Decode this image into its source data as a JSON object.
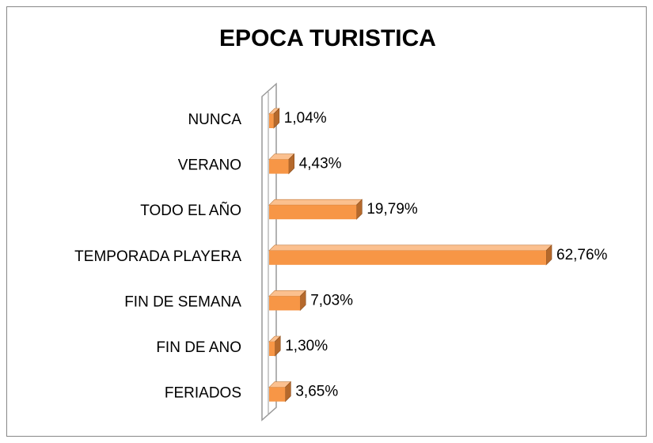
{
  "chart_data": {
    "type": "bar3d_horizontal",
    "title": "EPOCA TURISTICA",
    "categories": [
      "NUNCA",
      "VERANO",
      "TODO EL AÑO",
      "TEMPORADA PLAYERA",
      "FIN DE SEMANA",
      "FIN DE ANO",
      "FERIADOS"
    ],
    "values": [
      1.04,
      4.43,
      19.79,
      62.76,
      7.03,
      1.3,
      3.65
    ],
    "value_labels": [
      "1,04%",
      "4,43%",
      "19,79%",
      "62,76%",
      "7,03%",
      "1,30%",
      "3,65%"
    ],
    "color": "#f79646"
  }
}
